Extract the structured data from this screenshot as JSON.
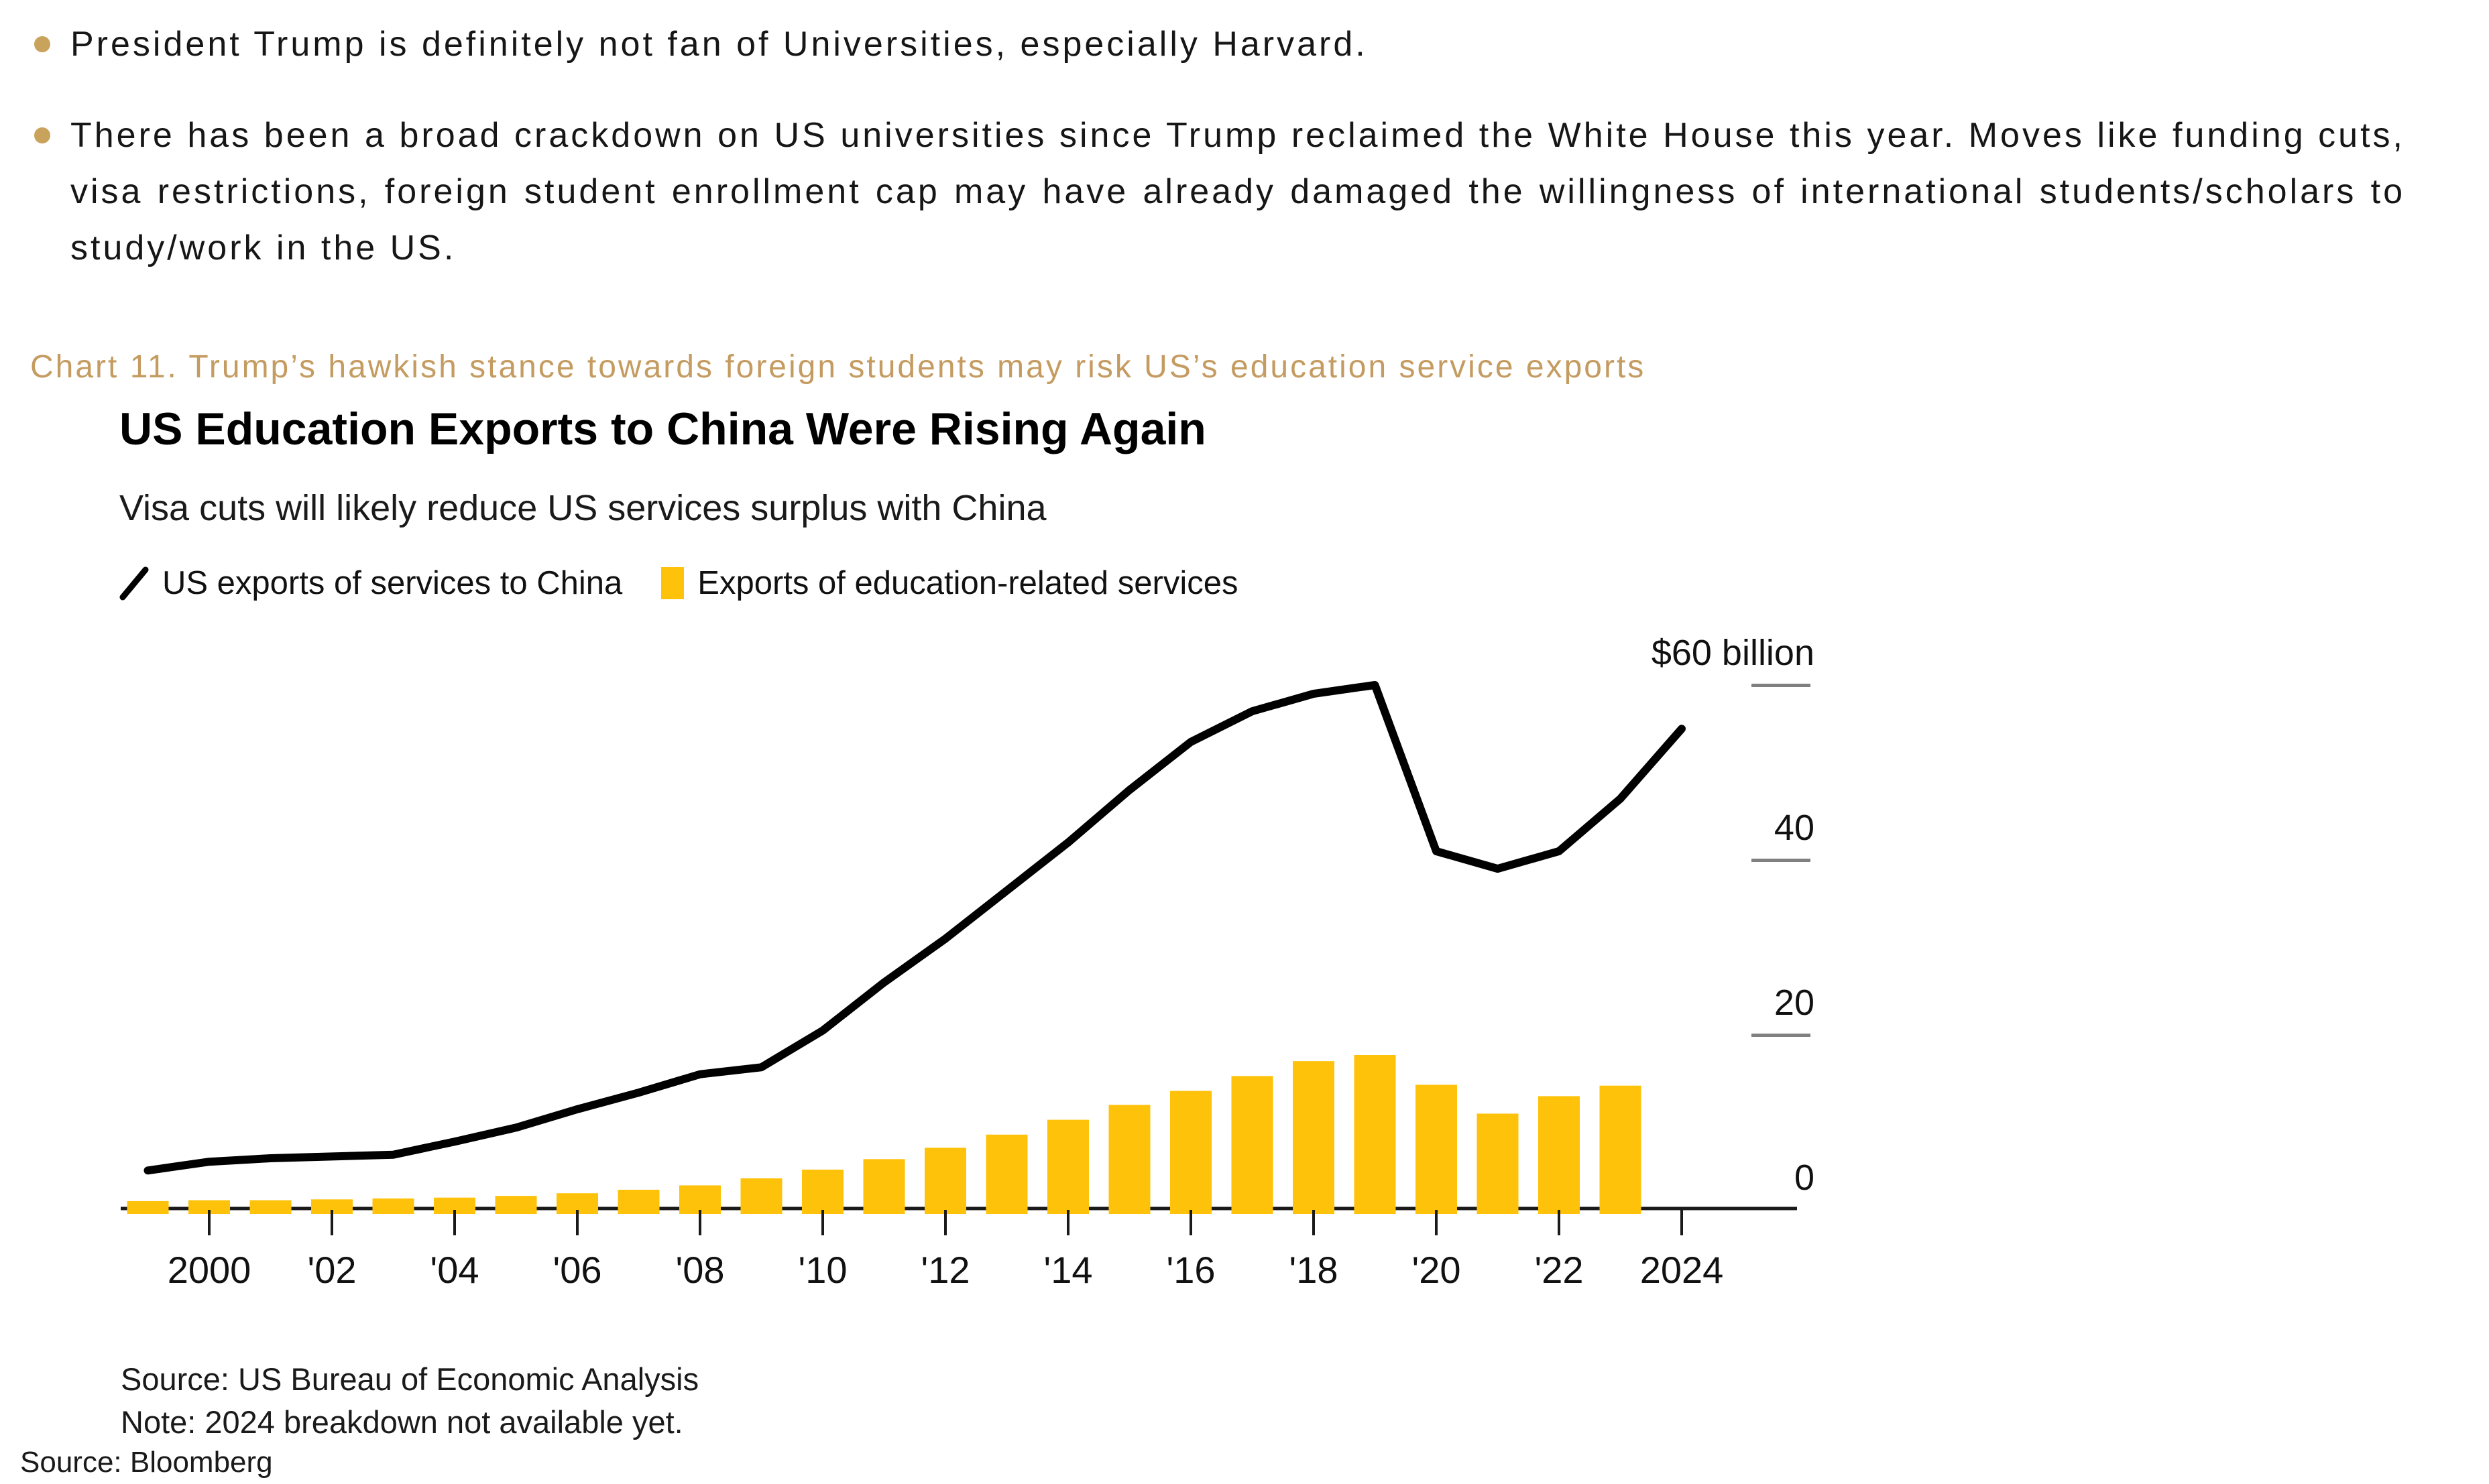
{
  "bullets": [
    {
      "text": "President Trump is definitely not fan of Universities, especially Harvard."
    },
    {
      "text": "There has been a broad crackdown on US universities since Trump reclaimed the White House this year. Moves like funding cuts, visa restrictions, foreign student enrollment cap may have already damaged the willingness of international students/scholars to study/work in the US."
    }
  ],
  "caption": "Chart 11. Trump’s hawkish stance towards foreign students may risk US’s education service exports",
  "chart": {
    "title": "US Education Exports to China Were Rising Again",
    "subtitle": "Visa cuts will likely reduce US services surplus with China",
    "legend": [
      {
        "label": "US exports of services to China",
        "type": "line"
      },
      {
        "label": "Exports of education-related services",
        "type": "bar"
      }
    ],
    "source": "Source: US Bureau of Economic Analysis",
    "note": "Note: 2024 breakdown not available yet."
  },
  "page_source": "Source: Bloomberg",
  "colors": {
    "bar": "#FFC20A",
    "line": "#000000",
    "axis": "#1a1a1a",
    "tick_dash": "#808080",
    "gold_text": "#C49B60",
    "bullet_dot": "#C9A25C"
  },
  "chart_data": {
    "type": "combo",
    "unit": "USD billions",
    "ylim": [
      0,
      62
    ],
    "years": [
      1999,
      2000,
      2001,
      2002,
      2003,
      2004,
      2005,
      2006,
      2007,
      2008,
      2009,
      2010,
      2011,
      2012,
      2013,
      2014,
      2015,
      2016,
      2017,
      2018,
      2019,
      2020,
      2021,
      2022,
      2023,
      2024
    ],
    "series": [
      {
        "name": "US exports of services to China",
        "type": "line",
        "values": [
          4.5,
          5.5,
          5.9,
          6.1,
          6.3,
          7.8,
          9.4,
          11.5,
          13.4,
          15.5,
          16.3,
          20.5,
          26,
          31,
          36.5,
          42,
          48,
          53.5,
          57,
          59,
          60,
          41,
          39,
          41,
          47,
          55
        ]
      },
      {
        "name": "Exports of education-related services",
        "type": "bar",
        "values": [
          1.0,
          1.1,
          1.1,
          1.2,
          1.3,
          1.4,
          1.6,
          1.9,
          2.3,
          2.8,
          3.6,
          4.6,
          5.8,
          7.1,
          8.6,
          10.3,
          12.0,
          13.6,
          15.3,
          17.0,
          17.7,
          14.3,
          11.0,
          13.0,
          14.2,
          null
        ]
      }
    ],
    "x_ticks": [
      {
        "year": 2000,
        "label": "2000"
      },
      {
        "year": 2002,
        "label": "'02"
      },
      {
        "year": 2004,
        "label": "'04"
      },
      {
        "year": 2006,
        "label": "'06"
      },
      {
        "year": 2008,
        "label": "'08"
      },
      {
        "year": 2010,
        "label": "'10"
      },
      {
        "year": 2012,
        "label": "'12"
      },
      {
        "year": 2014,
        "label": "'14"
      },
      {
        "year": 2016,
        "label": "'16"
      },
      {
        "year": 2018,
        "label": "'18"
      },
      {
        "year": 2020,
        "label": "'20"
      },
      {
        "year": 2022,
        "label": "'22"
      },
      {
        "year": 2024,
        "label": "2024"
      }
    ],
    "y_ticks": [
      {
        "value": 60,
        "label": "$60 billion",
        "dash": true
      },
      {
        "value": 40,
        "label": "40",
        "dash": true
      },
      {
        "value": 20,
        "label": "20",
        "dash": true
      },
      {
        "value": 0,
        "label": "0",
        "dash": false
      }
    ]
  }
}
